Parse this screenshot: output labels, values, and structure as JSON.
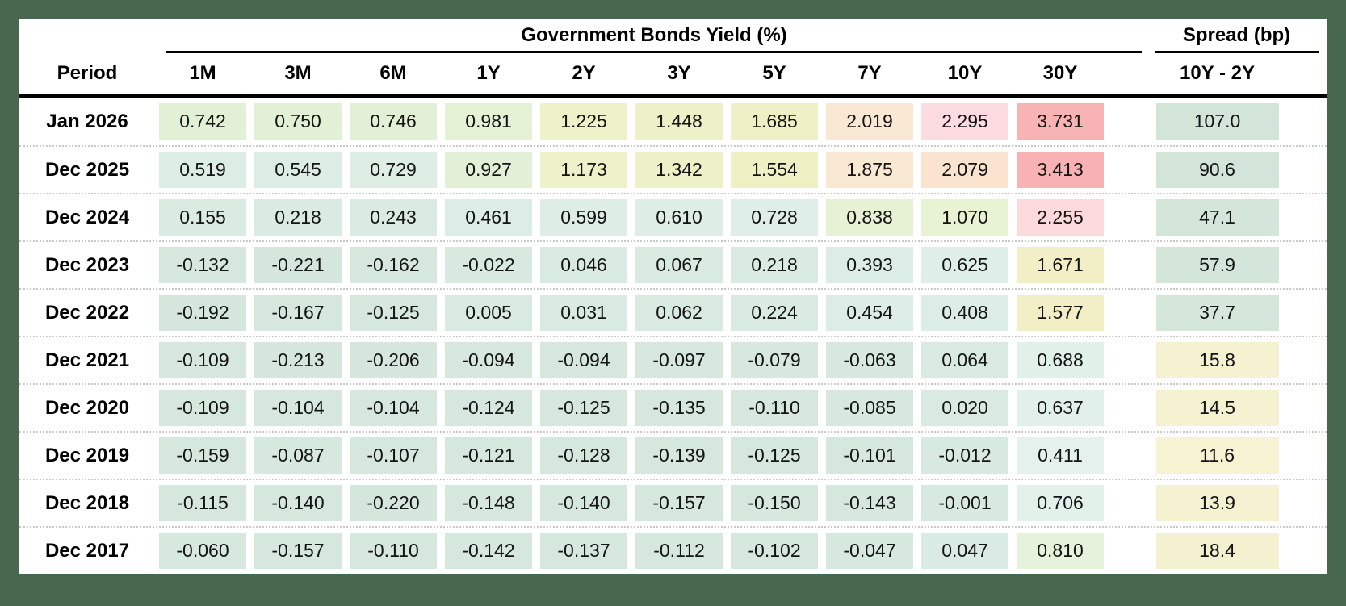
{
  "page": {
    "background_color": "#47684e"
  },
  "table": {
    "yield_group_title": "Government Bonds Yield (%)",
    "spread_group_title": "Spread (bp)",
    "period_header": "Period",
    "maturity_headers": [
      "1M",
      "3M",
      "6M",
      "1Y",
      "2Y",
      "3Y",
      "5Y",
      "7Y",
      "10Y",
      "30Y"
    ],
    "spread_header": "10Y - 2Y",
    "rows": [
      {
        "period": "Jan 2026",
        "values": [
          "0.742",
          "0.750",
          "0.746",
          "0.981",
          "1.225",
          "1.448",
          "1.685",
          "2.019",
          "2.295",
          "3.731"
        ],
        "colors": [
          "#e2f0d6",
          "#e2f0d6",
          "#e2f0d6",
          "#e4f1d4",
          "#eef2c8",
          "#edf1c7",
          "#f0f0c6",
          "#f9e8d4",
          "#fcdce1",
          "#f8b3b5"
        ],
        "spread": "107.0",
        "spread_color": "#d3e5d9"
      },
      {
        "period": "Dec 2025",
        "values": [
          "0.519",
          "0.545",
          "0.729",
          "0.927",
          "1.173",
          "1.342",
          "1.554",
          "1.875",
          "2.079",
          "3.413"
        ],
        "colors": [
          "#dcede6",
          "#dcede6",
          "#deeee5",
          "#e2f0d7",
          "#eef2c8",
          "#edf1c7",
          "#f0f0c5",
          "#f9e9d3",
          "#fae4cf",
          "#f8b2b4"
        ],
        "spread": "90.6",
        "spread_color": "#d3e5d9"
      },
      {
        "period": "Dec 2024",
        "values": [
          "0.155",
          "0.218",
          "0.243",
          "0.461",
          "0.599",
          "0.610",
          "0.728",
          "0.838",
          "1.070",
          "2.255"
        ],
        "colors": [
          "#daebe2",
          "#daebe3",
          "#daebe3",
          "#dcede7",
          "#deeee7",
          "#deeee7",
          "#dfeee9",
          "#e7f2d5",
          "#e8f3d4",
          "#fcdadb"
        ],
        "spread": "47.1",
        "spread_color": "#d4e6da"
      },
      {
        "period": "Dec 2023",
        "values": [
          "-0.132",
          "-0.221",
          "-0.162",
          "-0.022",
          "0.046",
          "0.067",
          "0.218",
          "0.393",
          "0.625",
          "1.671"
        ],
        "colors": [
          "#d6e8de",
          "#d5e7dd",
          "#d6e8de",
          "#d8e9e0",
          "#d8eae1",
          "#d9eae1",
          "#daebe3",
          "#dcede7",
          "#dfeee9",
          "#f2efc7"
        ],
        "spread": "57.9",
        "spread_color": "#d4e6da"
      },
      {
        "period": "Dec 2022",
        "values": [
          "-0.192",
          "-0.167",
          "-0.125",
          "0.005",
          "0.031",
          "0.062",
          "0.224",
          "0.454",
          "0.408",
          "1.577"
        ],
        "colors": [
          "#d5e7dd",
          "#d6e8de",
          "#d6e8de",
          "#d9eae3",
          "#d9eae3",
          "#d9eae1",
          "#daebe3",
          "#dcede8",
          "#dcede8",
          "#f2eec6"
        ],
        "spread": "37.7",
        "spread_color": "#d5e7db"
      },
      {
        "period": "Dec 2021",
        "values": [
          "-0.109",
          "-0.213",
          "-0.206",
          "-0.094",
          "-0.094",
          "-0.097",
          "-0.079",
          "-0.063",
          "0.064",
          "0.688"
        ],
        "colors": [
          "#d6e8de",
          "#d5e7dd",
          "#d5e7dd",
          "#d6e8de",
          "#d6e8de",
          "#d6e8de",
          "#d7e8df",
          "#d7e9df",
          "#d9eae2",
          "#e2f0ea"
        ],
        "spread": "15.8",
        "spread_color": "#f5f2d2"
      },
      {
        "period": "Dec 2020",
        "values": [
          "-0.109",
          "-0.104",
          "-0.104",
          "-0.124",
          "-0.125",
          "-0.135",
          "-0.110",
          "-0.085",
          "0.020",
          "0.637"
        ],
        "colors": [
          "#d6e8de",
          "#d6e8de",
          "#d6e8de",
          "#d6e8de",
          "#d6e8de",
          "#d6e8de",
          "#d6e8de",
          "#d7e9df",
          "#d9eae3",
          "#e2f0eb"
        ],
        "spread": "14.5",
        "spread_color": "#f5f2d2"
      },
      {
        "period": "Dec 2019",
        "values": [
          "-0.159",
          "-0.087",
          "-0.107",
          "-0.121",
          "-0.128",
          "-0.139",
          "-0.125",
          "-0.101",
          "-0.012",
          "0.411"
        ],
        "colors": [
          "#d6e8de",
          "#d7e8df",
          "#d6e8de",
          "#d6e8de",
          "#d6e8de",
          "#d6e8de",
          "#d6e8de",
          "#d6e8de",
          "#d8e9e1",
          "#e5f1ec"
        ],
        "spread": "11.6",
        "spread_color": "#f6f2d2"
      },
      {
        "period": "Dec 2018",
        "values": [
          "-0.115",
          "-0.140",
          "-0.220",
          "-0.148",
          "-0.140",
          "-0.157",
          "-0.150",
          "-0.143",
          "-0.001",
          "0.706"
        ],
        "colors": [
          "#d6e8de",
          "#d6e8de",
          "#d5e7dd",
          "#d6e8de",
          "#d6e8de",
          "#d6e8de",
          "#d6e8de",
          "#d6e8de",
          "#d8e9e1",
          "#e3f1eb"
        ],
        "spread": "13.9",
        "spread_color": "#f5f2d2"
      },
      {
        "period": "Dec 2017",
        "values": [
          "-0.060",
          "-0.157",
          "-0.110",
          "-0.142",
          "-0.137",
          "-0.112",
          "-0.102",
          "-0.047",
          "0.047",
          "0.810"
        ],
        "colors": [
          "#d7e9df",
          "#d6e8de",
          "#d6e8de",
          "#d6e8de",
          "#d6e8de",
          "#d6e8de",
          "#d6e8de",
          "#d7e9df",
          "#daebe5",
          "#e7f2dc"
        ],
        "spread": "18.4",
        "spread_color": "#f4f1d0"
      }
    ]
  },
  "chart_data": {
    "type": "table",
    "title": "Government Bonds Yield (%)",
    "subtitle": "Spread (bp)",
    "heatmap": true,
    "columns": [
      "Period",
      "1M",
      "3M",
      "6M",
      "1Y",
      "2Y",
      "3Y",
      "5Y",
      "7Y",
      "10Y",
      "30Y",
      "10Y - 2Y spread (bp)"
    ],
    "rows": [
      [
        "Jan 2026",
        0.742,
        0.75,
        0.746,
        0.981,
        1.225,
        1.448,
        1.685,
        2.019,
        2.295,
        3.731,
        107.0
      ],
      [
        "Dec 2025",
        0.519,
        0.545,
        0.729,
        0.927,
        1.173,
        1.342,
        1.554,
        1.875,
        2.079,
        3.413,
        90.6
      ],
      [
        "Dec 2024",
        0.155,
        0.218,
        0.243,
        0.461,
        0.599,
        0.61,
        0.728,
        0.838,
        1.07,
        2.255,
        47.1
      ],
      [
        "Dec 2023",
        -0.132,
        -0.221,
        -0.162,
        -0.022,
        0.046,
        0.067,
        0.218,
        0.393,
        0.625,
        1.671,
        57.9
      ],
      [
        "Dec 2022",
        -0.192,
        -0.167,
        -0.125,
        0.005,
        0.031,
        0.062,
        0.224,
        0.454,
        0.408,
        1.577,
        37.7
      ],
      [
        "Dec 2021",
        -0.109,
        -0.213,
        -0.206,
        -0.094,
        -0.094,
        -0.097,
        -0.079,
        -0.063,
        0.064,
        0.688,
        15.8
      ],
      [
        "Dec 2020",
        -0.109,
        -0.104,
        -0.104,
        -0.124,
        -0.125,
        -0.135,
        -0.11,
        -0.085,
        0.02,
        0.637,
        14.5
      ],
      [
        "Dec 2019",
        -0.159,
        -0.087,
        -0.107,
        -0.121,
        -0.128,
        -0.139,
        -0.125,
        -0.101,
        -0.012,
        0.411,
        11.6
      ],
      [
        "Dec 2018",
        -0.115,
        -0.14,
        -0.22,
        -0.148,
        -0.14,
        -0.157,
        -0.15,
        -0.143,
        -0.001,
        0.706,
        13.9
      ],
      [
        "Dec 2017",
        -0.06,
        -0.157,
        -0.11,
        -0.142,
        -0.137,
        -0.112,
        -0.102,
        -0.047,
        0.047,
        0.81,
        18.4
      ]
    ]
  }
}
